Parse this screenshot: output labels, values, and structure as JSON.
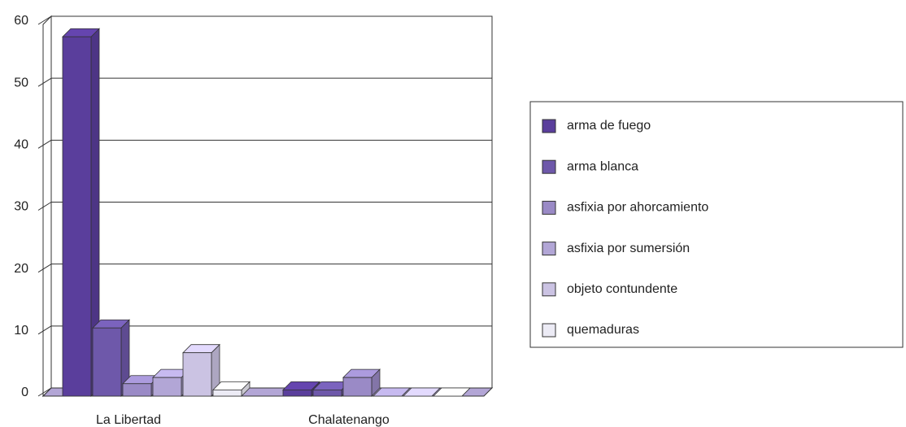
{
  "chart_data": {
    "type": "bar3d",
    "categories": [
      "La Libertad",
      "Chalatenango"
    ],
    "series": [
      {
        "name": "arma de fuego",
        "color": "#5a3e9c",
        "values": [
          58,
          1
        ]
      },
      {
        "name": "arma blanca",
        "color": "#6e58aa",
        "values": [
          11,
          1
        ]
      },
      {
        "name": "asfixia por ahorcamiento",
        "color": "#9a8ac6",
        "values": [
          2,
          3
        ]
      },
      {
        "name": "asfixia por sumersión",
        "color": "#b2a6d6",
        "values": [
          3,
          0
        ]
      },
      {
        "name": "objeto contundente",
        "color": "#cbc3e3",
        "values": [
          7,
          0
        ]
      },
      {
        "name": "quemaduras",
        "color": "#ecebf5",
        "values": [
          1,
          0
        ]
      }
    ],
    "ylim": [
      0,
      60
    ],
    "yticks": [
      0,
      10,
      20,
      30,
      40,
      50,
      60
    ],
    "grid": true,
    "legend": "right"
  }
}
